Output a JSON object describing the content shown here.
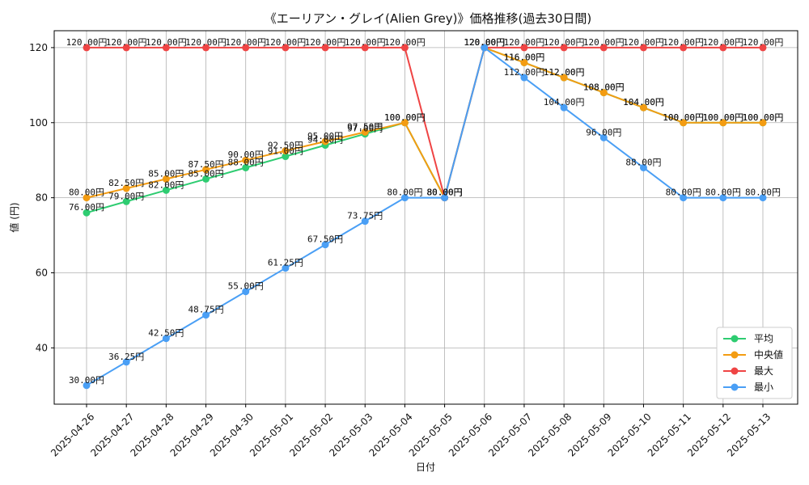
{
  "chart_data": {
    "type": "line",
    "title": "《エーリアン・グレイ(Alien Grey)》価格推移(過去30日間)",
    "xlabel": "日付",
    "ylabel": "値 (円)",
    "ylim": [
      25,
      124.5
    ],
    "yticks": [
      40,
      60,
      80,
      100,
      120
    ],
    "grid": true,
    "legend_position": "lower-right",
    "label_suffix": "円",
    "categories": [
      "2025-04-26",
      "2025-04-27",
      "2025-04-28",
      "2025-04-29",
      "2025-04-30",
      "2025-05-01",
      "2025-05-02",
      "2025-05-03",
      "2025-05-04",
      "2025-05-05",
      "2025-05-06",
      "2025-05-07",
      "2025-05-08",
      "2025-05-09",
      "2025-05-10",
      "2025-05-11",
      "2025-05-12",
      "2025-05-13"
    ],
    "series": [
      {
        "name": "平均",
        "color": "#2ecc71",
        "values": [
          76,
          79,
          82,
          85,
          88,
          91,
          94,
          97,
          100,
          80,
          120,
          116,
          112,
          108,
          104,
          100,
          100,
          100
        ]
      },
      {
        "name": "中央値",
        "color": "#f39c12",
        "values": [
          80,
          82.5,
          85,
          87.5,
          90,
          92.5,
          95,
          97.5,
          100,
          80,
          120,
          116,
          112,
          108,
          104,
          100,
          100,
          100
        ]
      },
      {
        "name": "最大",
        "color": "#ef4444",
        "values": [
          120,
          120,
          120,
          120,
          120,
          120,
          120,
          120,
          120,
          80,
          120,
          120,
          120,
          120,
          120,
          120,
          120,
          120
        ]
      },
      {
        "name": "最小",
        "color": "#4a9ff5",
        "values": [
          30,
          36.25,
          42.5,
          48.75,
          55,
          61.25,
          67.5,
          73.75,
          80,
          80,
          120,
          112,
          104,
          96,
          88,
          80,
          80,
          80
        ]
      }
    ]
  }
}
